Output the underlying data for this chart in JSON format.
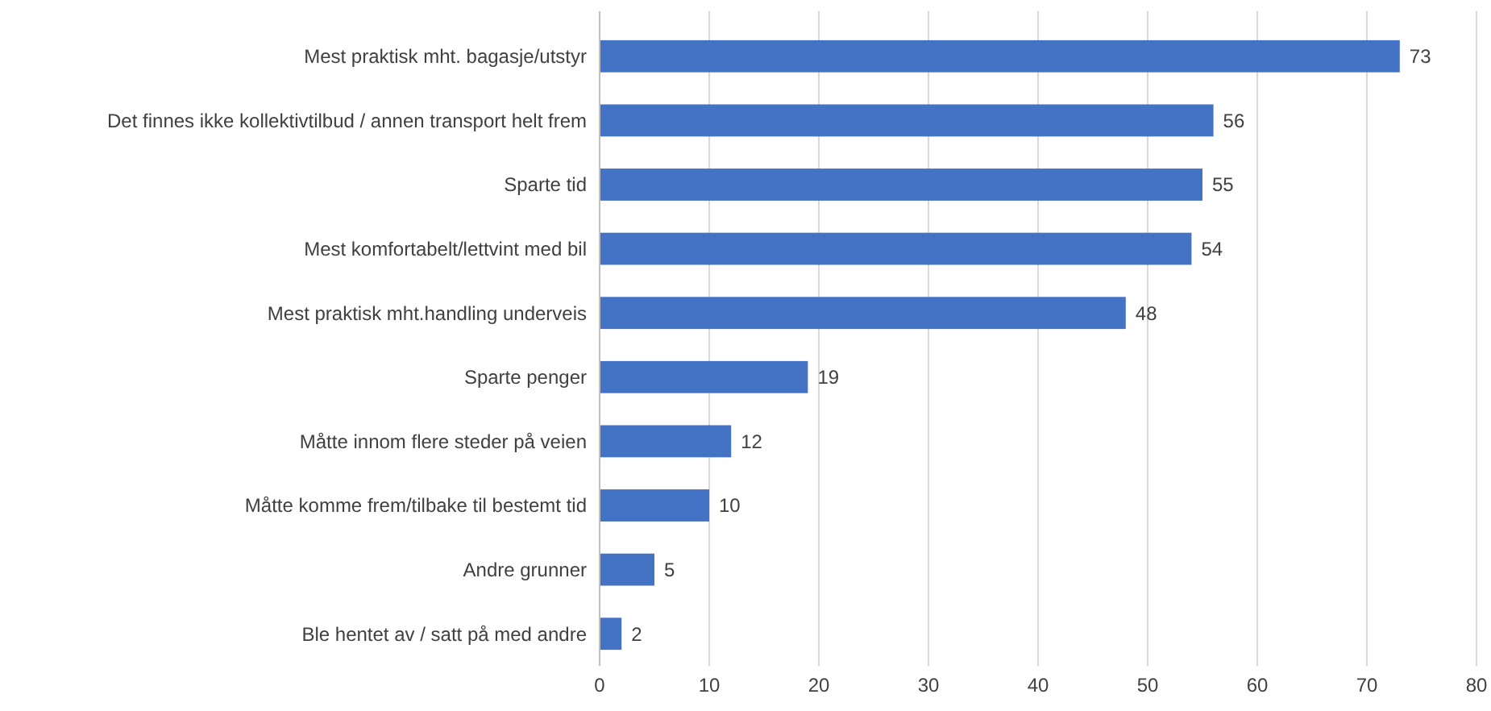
{
  "chart_data": {
    "type": "bar",
    "orientation": "horizontal",
    "categories": [
      "Mest praktisk mht. bagasje/utstyr",
      "Det finnes ikke kollektivtilbud / annen transport helt frem",
      "Sparte tid",
      "Mest komfortabelt/lettvint med bil",
      "Mest praktisk mht.handling underveis",
      "Sparte penger",
      "Måtte innom flere steder på veien",
      "Måtte komme frem/tilbake til bestemt tid",
      "Andre grunner",
      "Ble hentet av / satt på med andre"
    ],
    "values": [
      73,
      56,
      55,
      54,
      48,
      19,
      12,
      10,
      5,
      2
    ],
    "color": "#4472c4",
    "xlim": [
      0,
      80
    ],
    "xticks": [
      0,
      10,
      20,
      30,
      40,
      50,
      60,
      70,
      80
    ],
    "grid": "x",
    "data_labels": true
  }
}
